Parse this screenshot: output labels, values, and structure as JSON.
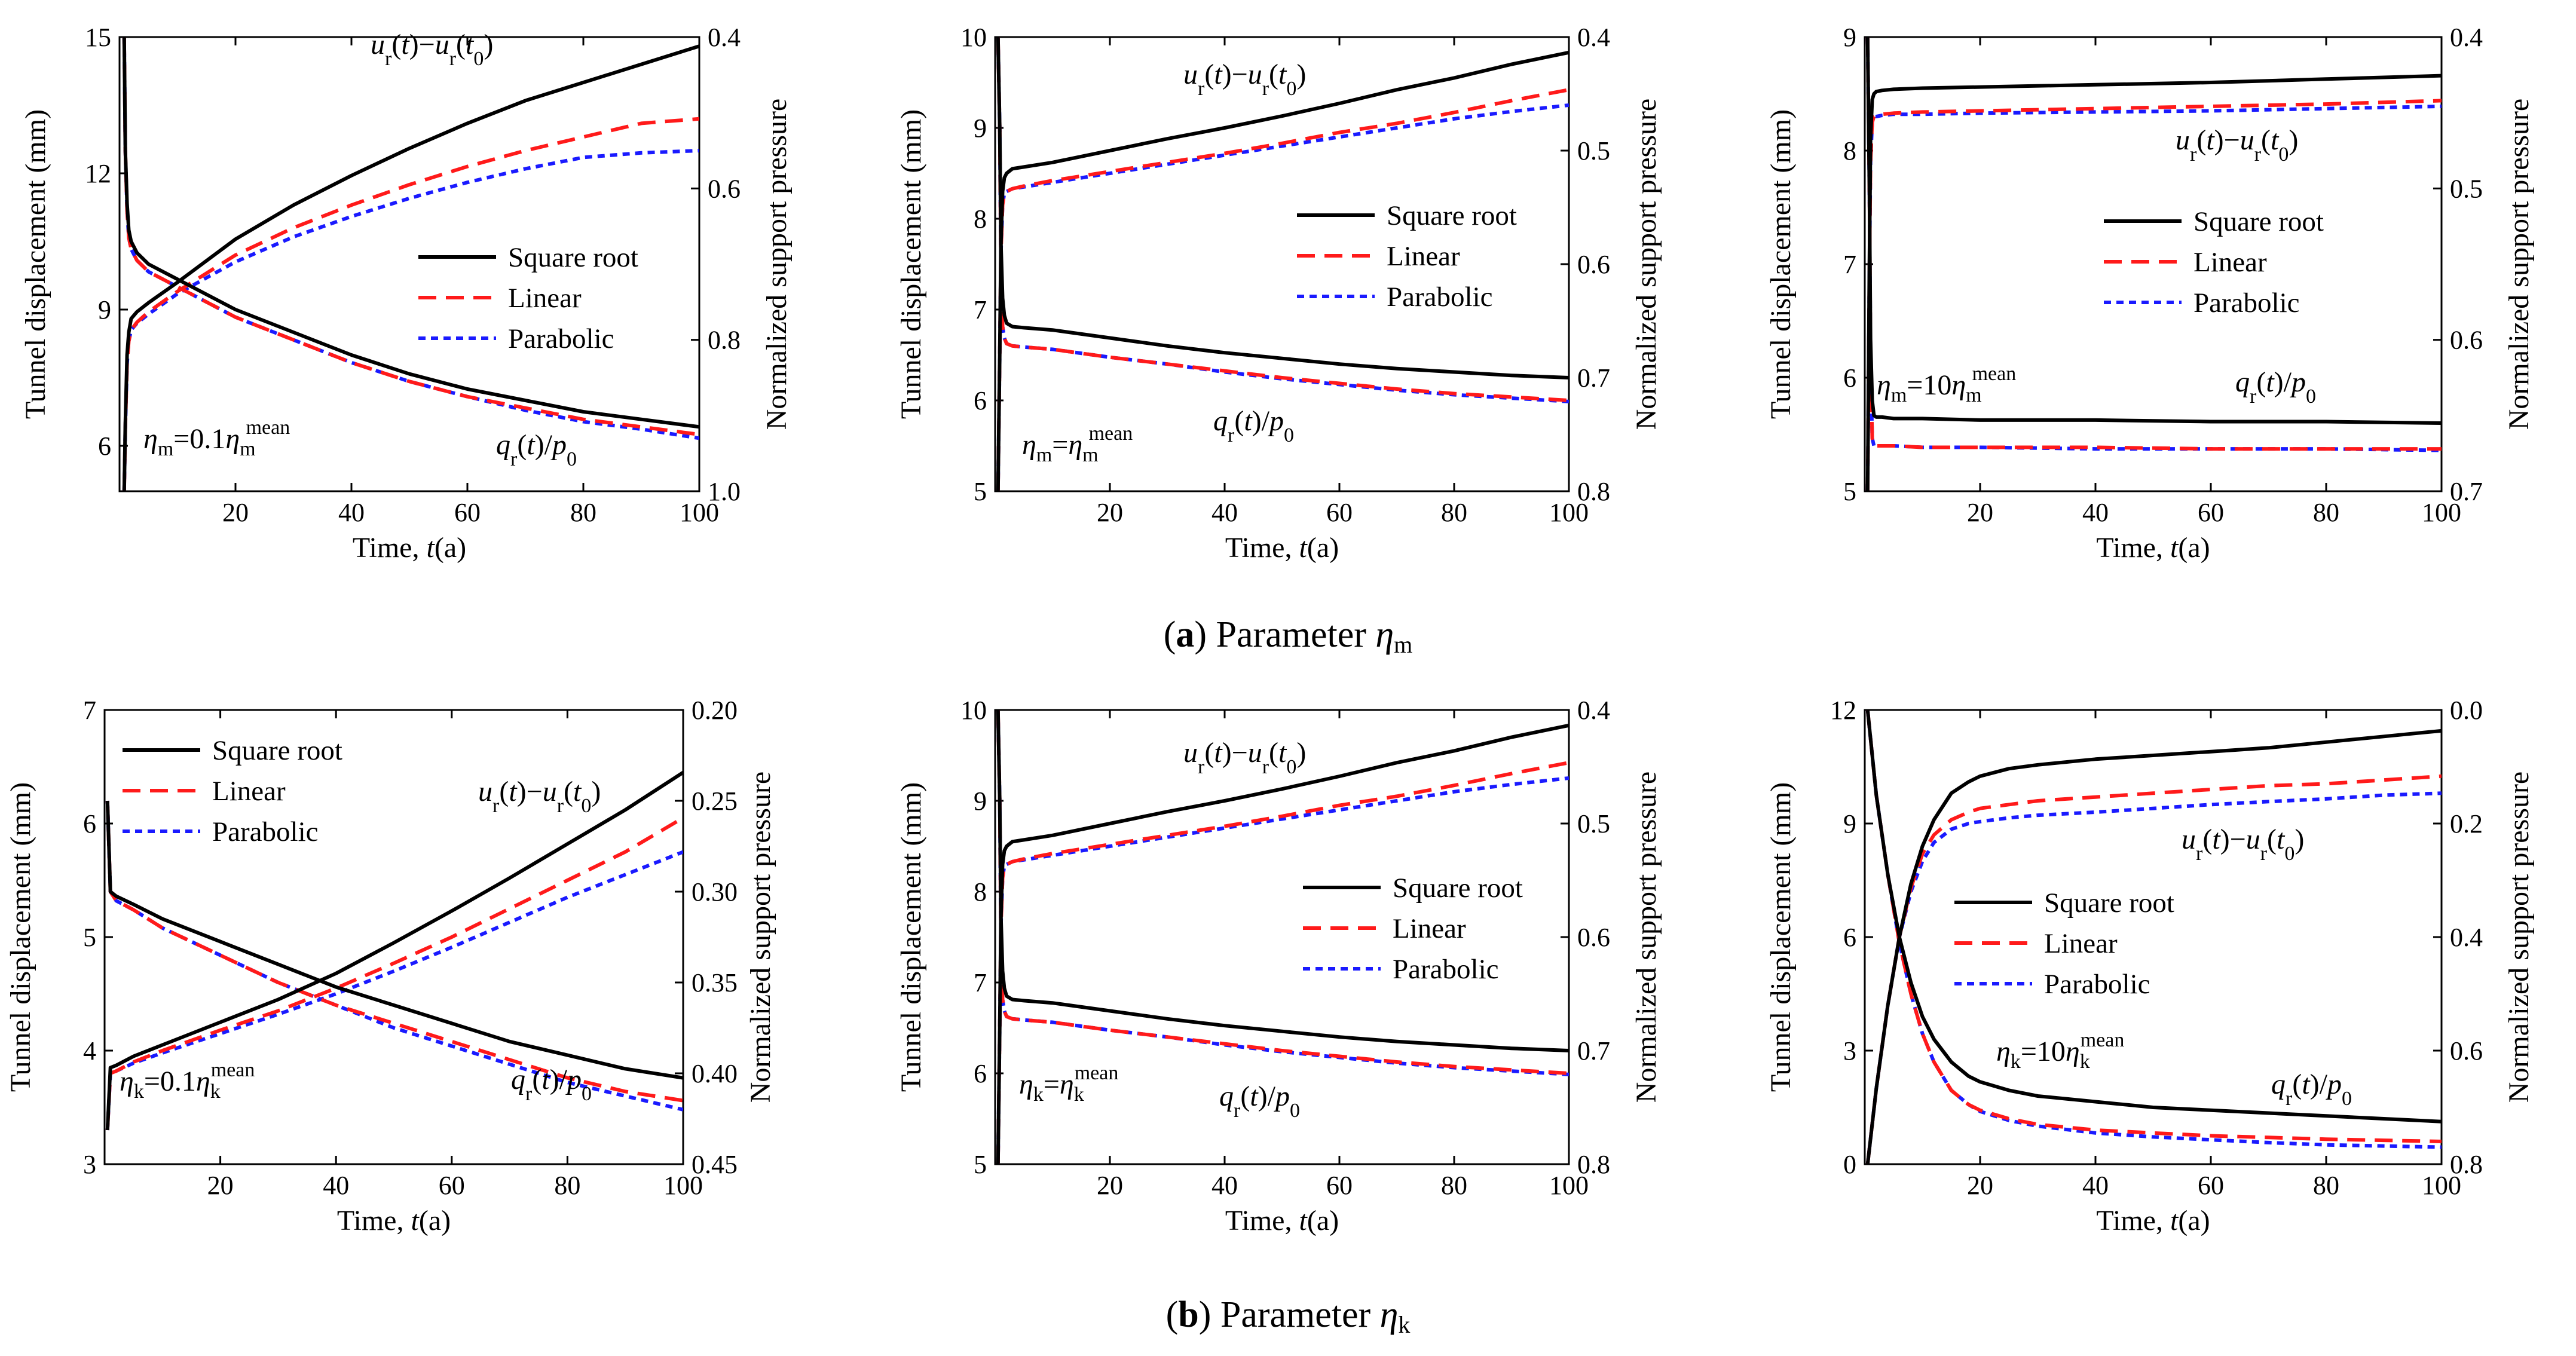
{
  "figure": {
    "captions": [
      {
        "letter": "a",
        "text": " Parameter ",
        "symbol": "η",
        "sub": "m"
      },
      {
        "letter": "b",
        "text": " Parameter ",
        "symbol": "η",
        "sub": "k"
      }
    ],
    "colors": {
      "square_root": "#000000",
      "linear": "#ff1a1a",
      "parabolic": "#1a1aff"
    }
  },
  "chart_data": [
    {
      "type": "line",
      "id": "a1",
      "xlabel": "Time, t(a)",
      "ylabel": "Tunnel displacement (mm)",
      "y2label": "Normalized support pressure",
      "xlim": [
        0,
        100
      ],
      "ylim": [
        5,
        15
      ],
      "y2lim": [
        0.4,
        1.0
      ],
      "xticks": [
        20,
        40,
        60,
        80,
        100
      ],
      "yticks": [
        6,
        9,
        12,
        15
      ],
      "y2ticks": [
        0.4,
        0.6,
        0.8,
        1.0
      ],
      "legend": [
        "Square root",
        "Linear",
        "Parabolic"
      ],
      "annotations": {
        "displacement": "ur(t)−ur(t0)",
        "pressure": "qr(t)/p0",
        "param": "ηm=0.1ηm mean"
      },
      "displacement": {
        "x": [
          0.8,
          1.0,
          1.3,
          1.6,
          2,
          3,
          5,
          10,
          20,
          30,
          40,
          50,
          60,
          70,
          80,
          90,
          100
        ],
        "square_root": [
          5,
          6.5,
          8.0,
          8.5,
          8.8,
          8.95,
          9.15,
          9.6,
          10.55,
          11.3,
          11.95,
          12.55,
          13.1,
          13.6,
          14.0,
          14.4,
          14.8
        ],
        "linear": [
          5,
          6.4,
          7.8,
          8.3,
          8.55,
          8.72,
          8.95,
          9.4,
          10.2,
          10.8,
          11.3,
          11.75,
          12.15,
          12.5,
          12.8,
          13.1,
          13.2
        ],
        "parabolic": [
          5,
          6.4,
          7.8,
          8.3,
          8.55,
          8.7,
          8.9,
          9.35,
          10.05,
          10.6,
          11.05,
          11.45,
          11.8,
          12.1,
          12.35,
          12.45,
          12.5
        ]
      },
      "pressure": {
        "x": [
          0.8,
          1.0,
          1.3,
          1.6,
          2,
          3,
          5,
          10,
          20,
          30,
          40,
          50,
          60,
          70,
          80,
          90,
          100
        ],
        "square_root": [
          0.4,
          0.55,
          0.62,
          0.655,
          0.67,
          0.685,
          0.7,
          0.72,
          0.76,
          0.79,
          0.82,
          0.845,
          0.865,
          0.88,
          0.895,
          0.905,
          0.915
        ],
        "linear": [
          0.4,
          0.55,
          0.63,
          0.665,
          0.68,
          0.695,
          0.71,
          0.73,
          0.77,
          0.8,
          0.83,
          0.855,
          0.875,
          0.89,
          0.905,
          0.915,
          0.925
        ],
        "parabolic": [
          0.4,
          0.55,
          0.63,
          0.665,
          0.68,
          0.695,
          0.71,
          0.73,
          0.77,
          0.8,
          0.83,
          0.855,
          0.875,
          0.893,
          0.908,
          0.918,
          0.93
        ]
      }
    },
    {
      "type": "line",
      "id": "a2",
      "xlabel": "Time, t(a)",
      "ylabel": "Tunnel displacement (mm)",
      "y2label": "Normalized support pressure",
      "xlim": [
        0,
        100
      ],
      "ylim": [
        5,
        10
      ],
      "y2lim": [
        0.4,
        0.8
      ],
      "xticks": [
        20,
        40,
        60,
        80,
        100
      ],
      "yticks": [
        5,
        6,
        7,
        8,
        9,
        10
      ],
      "y2ticks": [
        0.4,
        0.5,
        0.6,
        0.7,
        0.8
      ],
      "legend": [
        "Square root",
        "Linear",
        "Parabolic"
      ],
      "annotations": {
        "displacement": "ur(t)−ur(t0)",
        "pressure": "qr(t)/p0",
        "param": "ηm=ηm mean"
      },
      "displacement": {
        "x": [
          0.5,
          0.8,
          1.0,
          1.3,
          1.6,
          2,
          3,
          5,
          10,
          20,
          30,
          40,
          50,
          60,
          70,
          80,
          90,
          100
        ],
        "square_root": [
          5,
          6.5,
          7.7,
          8.3,
          8.45,
          8.5,
          8.55,
          8.57,
          8.62,
          8.75,
          8.88,
          9.0,
          9.13,
          9.27,
          9.42,
          9.55,
          9.7,
          9.83
        ],
        "linear": [
          5,
          6.5,
          7.6,
          8.15,
          8.28,
          8.3,
          8.33,
          8.36,
          8.42,
          8.52,
          8.62,
          8.72,
          8.83,
          8.95,
          9.05,
          9.17,
          9.3,
          9.42
        ],
        "parabolic": [
          5,
          6.5,
          7.6,
          8.15,
          8.28,
          8.3,
          8.33,
          8.35,
          8.4,
          8.5,
          8.6,
          8.7,
          8.8,
          8.9,
          9.0,
          9.1,
          9.18,
          9.25
        ]
      },
      "pressure": {
        "x": [
          0.5,
          0.8,
          1.0,
          1.3,
          1.6,
          2,
          3,
          5,
          10,
          20,
          30,
          40,
          50,
          60,
          70,
          80,
          90,
          100
        ],
        "square_root": [
          0.4,
          0.48,
          0.58,
          0.63,
          0.645,
          0.652,
          0.655,
          0.656,
          0.658,
          0.665,
          0.672,
          0.678,
          0.683,
          0.688,
          0.692,
          0.695,
          0.698,
          0.7
        ],
        "linear": [
          0.4,
          0.48,
          0.6,
          0.655,
          0.665,
          0.67,
          0.672,
          0.673,
          0.675,
          0.682,
          0.688,
          0.694,
          0.7,
          0.705,
          0.71,
          0.714,
          0.717,
          0.72
        ],
        "parabolic": [
          0.4,
          0.48,
          0.6,
          0.655,
          0.665,
          0.67,
          0.672,
          0.673,
          0.675,
          0.682,
          0.688,
          0.695,
          0.701,
          0.706,
          0.711,
          0.715,
          0.718,
          0.721
        ]
      }
    },
    {
      "type": "line",
      "id": "a3",
      "xlabel": "Time, t(a)",
      "ylabel": "Tunnel displacement (mm)",
      "y2label": "Normalized support pressure",
      "xlim": [
        0,
        100
      ],
      "ylim": [
        5,
        9
      ],
      "y2lim": [
        0.4,
        0.7
      ],
      "xticks": [
        20,
        40,
        60,
        80,
        100
      ],
      "yticks": [
        5,
        6,
        7,
        8,
        9
      ],
      "y2ticks": [
        0.4,
        0.5,
        0.6,
        0.7
      ],
      "legend": [
        "Square root",
        "Linear",
        "Parabolic"
      ],
      "annotations": {
        "displacement": "ur(t)−ur(t0)",
        "pressure": "qr(t)/p0",
        "param": "ηm=10ηm mean"
      },
      "displacement": {
        "x": [
          0.5,
          0.8,
          1.0,
          1.3,
          1.6,
          2,
          3,
          5,
          10,
          20,
          40,
          60,
          80,
          100
        ],
        "square_root": [
          5,
          7.0,
          8.1,
          8.45,
          8.5,
          8.52,
          8.53,
          8.54,
          8.55,
          8.56,
          8.58,
          8.6,
          8.63,
          8.66
        ],
        "linear": [
          5,
          6.9,
          7.9,
          8.25,
          8.3,
          8.31,
          8.32,
          8.33,
          8.34,
          8.35,
          8.37,
          8.39,
          8.41,
          8.44
        ],
        "parabolic": [
          5,
          6.9,
          7.9,
          8.25,
          8.3,
          8.3,
          8.31,
          8.32,
          8.32,
          8.33,
          8.34,
          8.35,
          8.37,
          8.39
        ]
      },
      "pressure": {
        "x": [
          0.5,
          0.8,
          1.0,
          1.3,
          1.6,
          2,
          3,
          5,
          10,
          20,
          40,
          60,
          80,
          100
        ],
        "square_root": [
          0.4,
          0.5,
          0.6,
          0.64,
          0.65,
          0.651,
          0.651,
          0.652,
          0.652,
          0.653,
          0.653,
          0.654,
          0.654,
          0.655
        ],
        "linear": [
          0.4,
          0.5,
          0.61,
          0.665,
          0.67,
          0.67,
          0.67,
          0.67,
          0.671,
          0.671,
          0.671,
          0.672,
          0.672,
          0.672
        ],
        "parabolic": [
          0.4,
          0.5,
          0.61,
          0.665,
          0.67,
          0.67,
          0.67,
          0.67,
          0.671,
          0.671,
          0.672,
          0.672,
          0.672,
          0.673
        ]
      }
    },
    {
      "type": "line",
      "id": "b1",
      "xlabel": "Time, t(a)",
      "ylabel": "Tunnel displacement (mm)",
      "y2label": "Normalized support pressure",
      "xlim": [
        0,
        100
      ],
      "ylim": [
        3,
        7
      ],
      "y2lim": [
        0.2,
        0.45
      ],
      "xticks": [
        20,
        40,
        60,
        80,
        100
      ],
      "yticks": [
        3,
        4,
        5,
        6,
        7
      ],
      "y2ticks": [
        0.2,
        0.25,
        0.3,
        0.35,
        0.4,
        0.45
      ],
      "legend": [
        "Square root",
        "Linear",
        "Parabolic"
      ],
      "annotations": {
        "displacement": "ur(t)−ur(t0)",
        "pressure": "qr(t)/p0",
        "param": "ηk=0.1ηk mean"
      },
      "displacement": {
        "x": [
          0.5,
          1,
          2,
          5,
          10,
          20,
          30,
          40,
          50,
          60,
          70,
          80,
          90,
          100
        ],
        "square_root": [
          3.3,
          3.85,
          3.87,
          3.95,
          4.05,
          4.25,
          4.45,
          4.68,
          4.95,
          5.23,
          5.52,
          5.82,
          6.12,
          6.45
        ],
        "linear": [
          3.3,
          3.8,
          3.82,
          3.9,
          4.0,
          4.18,
          4.35,
          4.55,
          4.77,
          5.0,
          5.25,
          5.5,
          5.75,
          6.05
        ],
        "parabolic": [
          3.3,
          3.8,
          3.82,
          3.89,
          3.98,
          4.15,
          4.32,
          4.5,
          4.7,
          4.91,
          5.13,
          5.35,
          5.55,
          5.75
        ]
      },
      "pressure": {
        "x": [
          0.5,
          1,
          2,
          5,
          10,
          20,
          30,
          40,
          50,
          60,
          70,
          80,
          90,
          100
        ],
        "square_root": [
          0.25,
          0.3,
          0.3025,
          0.307,
          0.315,
          0.3275,
          0.34,
          0.3525,
          0.3625,
          0.3725,
          0.3825,
          0.39,
          0.3975,
          0.4025
        ],
        "linear": [
          0.25,
          0.3,
          0.305,
          0.31,
          0.32,
          0.335,
          0.35,
          0.3625,
          0.3725,
          0.3825,
          0.3925,
          0.4025,
          0.41,
          0.415
        ],
        "parabolic": [
          0.25,
          0.3,
          0.305,
          0.31,
          0.32,
          0.335,
          0.35,
          0.3625,
          0.375,
          0.385,
          0.395,
          0.405,
          0.4125,
          0.42
        ]
      }
    },
    {
      "type": "line",
      "id": "b2",
      "xlabel": "Time, t(a)",
      "ylabel": "Tunnel displacement (mm)",
      "y2label": "Normalized support pressure",
      "xlim": [
        0,
        100
      ],
      "ylim": [
        5,
        10
      ],
      "y2lim": [
        0.4,
        0.8
      ],
      "xticks": [
        20,
        40,
        60,
        80,
        100
      ],
      "yticks": [
        5,
        6,
        7,
        8,
        9,
        10
      ],
      "y2ticks": [
        0.4,
        0.5,
        0.6,
        0.7,
        0.8
      ],
      "legend": [
        "Square root",
        "Linear",
        "Parabolic"
      ],
      "annotations": {
        "displacement": "ur(t)−ur(t0)",
        "pressure": "qr(t)/p0",
        "param": "ηk=ηk mean"
      },
      "displacement": {
        "x": [
          0.5,
          0.8,
          1.0,
          1.3,
          1.6,
          2,
          3,
          5,
          10,
          20,
          30,
          40,
          50,
          60,
          70,
          80,
          90,
          100
        ],
        "square_root": [
          5,
          6.5,
          7.7,
          8.3,
          8.45,
          8.5,
          8.55,
          8.57,
          8.62,
          8.75,
          8.88,
          9.0,
          9.13,
          9.27,
          9.42,
          9.55,
          9.7,
          9.83
        ],
        "linear": [
          5,
          6.5,
          7.6,
          8.15,
          8.28,
          8.3,
          8.33,
          8.36,
          8.42,
          8.52,
          8.62,
          8.72,
          8.83,
          8.95,
          9.05,
          9.17,
          9.3,
          9.42
        ],
        "parabolic": [
          5,
          6.5,
          7.6,
          8.15,
          8.28,
          8.3,
          8.33,
          8.35,
          8.4,
          8.5,
          8.6,
          8.7,
          8.8,
          8.9,
          9.0,
          9.1,
          9.18,
          9.25
        ]
      },
      "pressure": {
        "x": [
          0.5,
          0.8,
          1.0,
          1.3,
          1.6,
          2,
          3,
          5,
          10,
          20,
          30,
          40,
          50,
          60,
          70,
          80,
          90,
          100
        ],
        "square_root": [
          0.4,
          0.48,
          0.58,
          0.63,
          0.645,
          0.652,
          0.655,
          0.656,
          0.658,
          0.665,
          0.672,
          0.678,
          0.683,
          0.688,
          0.692,
          0.695,
          0.698,
          0.7
        ],
        "linear": [
          0.4,
          0.48,
          0.6,
          0.655,
          0.665,
          0.67,
          0.672,
          0.673,
          0.675,
          0.682,
          0.688,
          0.694,
          0.7,
          0.705,
          0.71,
          0.714,
          0.717,
          0.72
        ],
        "parabolic": [
          0.4,
          0.48,
          0.6,
          0.655,
          0.665,
          0.67,
          0.672,
          0.673,
          0.675,
          0.682,
          0.688,
          0.695,
          0.701,
          0.706,
          0.711,
          0.715,
          0.718,
          0.721
        ]
      }
    },
    {
      "type": "line",
      "id": "b3",
      "xlabel": "Time, t(a)",
      "ylabel": "Tunnel displacement (mm)",
      "y2label": "Normalized support pressure",
      "xlim": [
        0,
        100
      ],
      "ylim": [
        0,
        12
      ],
      "y2lim": [
        0.0,
        0.8
      ],
      "xticks": [
        20,
        40,
        60,
        80,
        100
      ],
      "yticks": [
        0,
        3,
        6,
        9,
        12
      ],
      "y2ticks": [
        0.0,
        0.2,
        0.4,
        0.6,
        0.8
      ],
      "legend": [
        "Square root",
        "Linear",
        "Parabolic"
      ],
      "annotations": {
        "displacement": "ur(t)−ur(t0)",
        "pressure": "qr(t)/p0",
        "param": "ηk=10ηk mean"
      },
      "displacement": {
        "x": [
          0.5,
          2,
          4,
          6,
          8,
          10,
          12,
          15,
          18,
          20,
          25,
          30,
          40,
          50,
          60,
          70,
          80,
          90,
          100
        ],
        "square_root": [
          0,
          2.0,
          4.2,
          6.0,
          7.4,
          8.4,
          9.1,
          9.8,
          10.1,
          10.25,
          10.45,
          10.55,
          10.7,
          10.8,
          10.9,
          11.0,
          11.15,
          11.3,
          11.45
        ],
        "linear": [
          0,
          2.0,
          4.2,
          6.0,
          7.3,
          8.2,
          8.7,
          9.1,
          9.3,
          9.4,
          9.5,
          9.6,
          9.7,
          9.8,
          9.9,
          10.0,
          10.05,
          10.15,
          10.25
        ],
        "parabolic": [
          0,
          2.0,
          4.2,
          6.0,
          7.2,
          8.0,
          8.5,
          8.85,
          9.0,
          9.05,
          9.15,
          9.22,
          9.3,
          9.4,
          9.5,
          9.58,
          9.65,
          9.75,
          9.8
        ]
      },
      "pressure": {
        "x": [
          0.5,
          2,
          4,
          6,
          8,
          10,
          12,
          15,
          18,
          20,
          25,
          30,
          40,
          50,
          60,
          70,
          80,
          90,
          100
        ],
        "square_root": [
          0.0,
          0.15,
          0.29,
          0.4,
          0.48,
          0.54,
          0.58,
          0.62,
          0.645,
          0.655,
          0.67,
          0.68,
          0.69,
          0.7,
          0.705,
          0.71,
          0.715,
          0.72,
          0.725
        ],
        "linear": [
          0.0,
          0.15,
          0.29,
          0.41,
          0.5,
          0.57,
          0.62,
          0.67,
          0.695,
          0.705,
          0.72,
          0.73,
          0.74,
          0.745,
          0.75,
          0.753,
          0.756,
          0.758,
          0.76
        ],
        "parabolic": [
          0.0,
          0.15,
          0.29,
          0.41,
          0.5,
          0.57,
          0.62,
          0.67,
          0.695,
          0.707,
          0.723,
          0.733,
          0.745,
          0.752,
          0.757,
          0.762,
          0.766,
          0.768,
          0.77
        ]
      }
    }
  ]
}
